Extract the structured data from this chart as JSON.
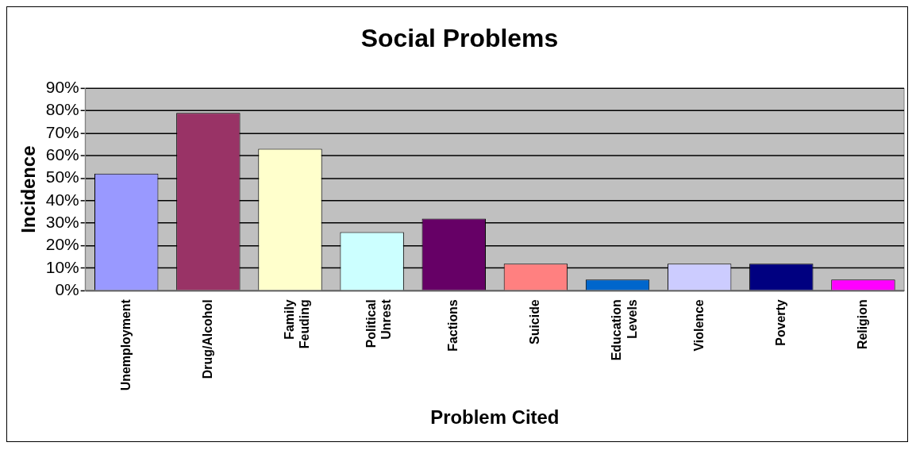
{
  "chart_data": {
    "type": "bar",
    "title": "Social Problems",
    "xlabel": "Problem Cited",
    "ylabel": "Incidence",
    "categories": [
      "Unemployment",
      "Drug/Alcohol",
      "Family Feuding",
      "Political Unrest",
      "Factions",
      "Suicide",
      "Education Levels",
      "Violence",
      "Poverty",
      "Religion"
    ],
    "values": [
      52,
      79,
      63,
      26,
      32,
      12,
      5,
      12,
      12,
      5
    ],
    "colors": [
      "#9999ff",
      "#993366",
      "#ffffcc",
      "#ccffff",
      "#660066",
      "#ff8080",
      "#0066cc",
      "#ccccff",
      "#000080",
      "#ff00ff"
    ],
    "ylim": [
      0,
      90
    ],
    "yticks": [
      {
        "value": 0,
        "label": "0%"
      },
      {
        "value": 10,
        "label": "10%"
      },
      {
        "value": 20,
        "label": "20%"
      },
      {
        "value": 30,
        "label": "30%"
      },
      {
        "value": 40,
        "label": "40%"
      },
      {
        "value": 50,
        "label": "50%"
      },
      {
        "value": 60,
        "label": "60%"
      },
      {
        "value": 70,
        "label": "70%"
      },
      {
        "value": 80,
        "label": "80%"
      },
      {
        "value": 90,
        "label": "90%"
      }
    ],
    "grid": "y",
    "legend": false
  }
}
